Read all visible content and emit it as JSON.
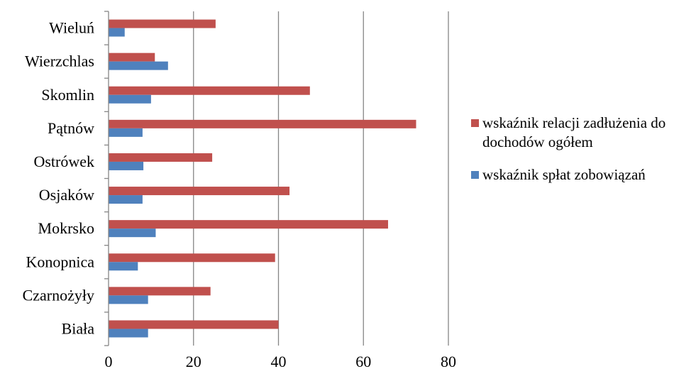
{
  "chart_data": {
    "type": "bar",
    "orientation": "horizontal",
    "categories": [
      "Biała",
      "Czarnożyły",
      "Konopnica",
      "Mokrsko",
      "Osjaków",
      "Ostrówek",
      "Pątnów",
      "Skomlin",
      "Wierzchlas",
      "Wieluń"
    ],
    "series": [
      {
        "name": "wskaźnik spłat zobowiązań",
        "color": "#4f81bd",
        "values": [
          9.3,
          9.3,
          6.9,
          11.1,
          8.0,
          8.2,
          8.0,
          10.0,
          14.0,
          3.8
        ]
      },
      {
        "name": "wskaźnik relacji zadłużenia do dochodów ogółem",
        "color": "#c0504d",
        "values": [
          40.0,
          24.0,
          39.2,
          65.8,
          42.6,
          24.4,
          72.4,
          47.4,
          10.9,
          25.2
        ]
      }
    ],
    "xlim": [
      0,
      80
    ],
    "xticks": [
      "0",
      "20",
      "40",
      "60",
      "80"
    ],
    "grid": true,
    "legend_position": "right",
    "title": "",
    "xlabel": "",
    "ylabel": ""
  }
}
